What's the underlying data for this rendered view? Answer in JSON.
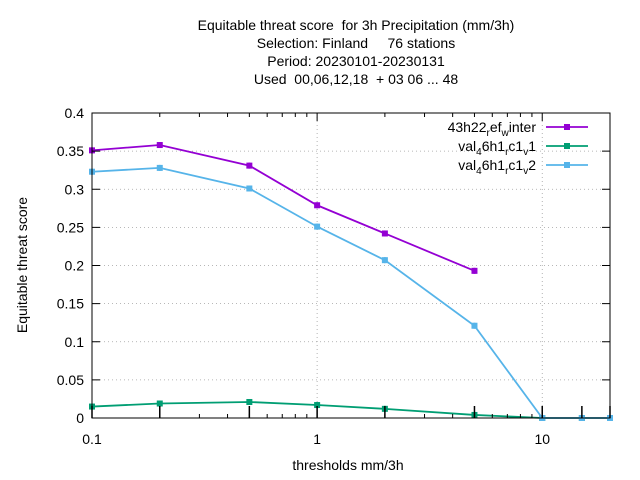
{
  "chart_data": {
    "type": "line",
    "title_lines": [
      "Equitable threat score  for 3h Precipitation (mm/3h)",
      "Selection: Finland     76 stations",
      "Period: 20230101-20230131",
      "Used  00,06,12,18  + 03 06 ... 48"
    ],
    "xlabel": "thresholds mm/3h",
    "ylabel": "Equitable threat score",
    "x_scale": "log",
    "xlim": [
      0.1,
      20
    ],
    "ylim": [
      0,
      0.4
    ],
    "x_ticks": [
      {
        "v": 0.1,
        "label": "0.1"
      },
      {
        "v": 1,
        "label": "1"
      },
      {
        "v": 10,
        "label": "10"
      }
    ],
    "y_ticks": [
      {
        "v": 0,
        "label": "0"
      },
      {
        "v": 0.05,
        "label": "0.05"
      },
      {
        "v": 0.1,
        "label": "0.1"
      },
      {
        "v": 0.15,
        "label": "0.15"
      },
      {
        "v": 0.2,
        "label": "0.2"
      },
      {
        "v": 0.25,
        "label": "0.25"
      },
      {
        "v": 0.3,
        "label": "0.3"
      },
      {
        "v": 0.35,
        "label": "0.35"
      },
      {
        "v": 0.4,
        "label": "0.4"
      }
    ],
    "grid": true,
    "legend_position": "top-right",
    "series": [
      {
        "name": "43h22_ref_winter",
        "legend_parts": [
          {
            "t": "43h22",
            "sub": false
          },
          {
            "t": "r",
            "sub": true
          },
          {
            "t": "ef",
            "sub": false
          },
          {
            "t": "w",
            "sub": true
          },
          {
            "t": "inter",
            "sub": false
          }
        ],
        "color": "#9400d3",
        "x": [
          0.1,
          0.2,
          0.5,
          1,
          2,
          5
        ],
        "y": [
          0.351,
          0.358,
          0.331,
          0.279,
          0.242,
          0.193
        ]
      },
      {
        "name": "val_46h1_rc1_v1",
        "legend_parts": [
          {
            "t": "val",
            "sub": false
          },
          {
            "t": "4",
            "sub": true
          },
          {
            "t": "6h1",
            "sub": false
          },
          {
            "t": "r",
            "sub": true
          },
          {
            "t": "c1",
            "sub": false
          },
          {
            "t": "v",
            "sub": true
          },
          {
            "t": "1",
            "sub": false
          }
        ],
        "color": "#009e73",
        "x": [
          0.1,
          0.2,
          0.5,
          1,
          2,
          5,
          10,
          15,
          20
        ],
        "y": [
          0.015,
          0.019,
          0.021,
          0.017,
          0.012,
          0.004,
          0.0,
          0.0,
          0.0
        ]
      },
      {
        "name": "val_46h1_rc1_v2",
        "legend_parts": [
          {
            "t": "val",
            "sub": false
          },
          {
            "t": "4",
            "sub": true
          },
          {
            "t": "6h1",
            "sub": false
          },
          {
            "t": "r",
            "sub": true
          },
          {
            "t": "c1",
            "sub": false
          },
          {
            "t": "v",
            "sub": true
          },
          {
            "t": "2",
            "sub": false
          }
        ],
        "color": "#56b4e9",
        "x": [
          0.1,
          0.2,
          0.5,
          1,
          2,
          5,
          10,
          15,
          20
        ],
        "y": [
          0.323,
          0.328,
          0.301,
          0.251,
          0.207,
          0.121,
          0.0,
          0.0,
          0.0
        ]
      }
    ]
  }
}
